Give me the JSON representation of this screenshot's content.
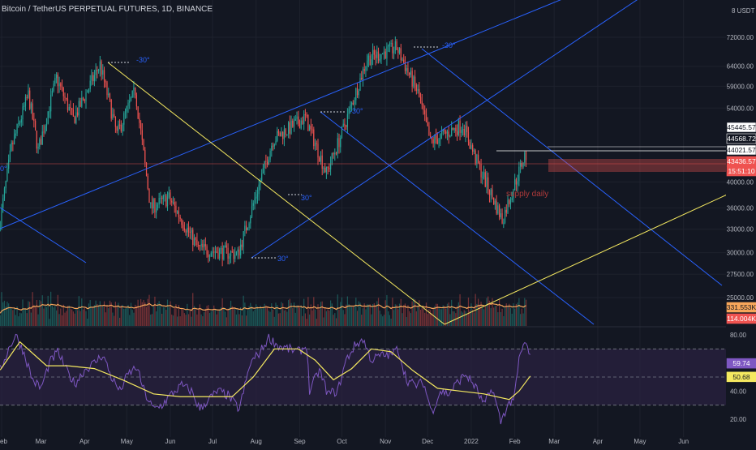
{
  "header": {
    "title": "Bitcoin / TetherUS PERPETUAL FUTURES, 1D, BINANCE"
  },
  "colors": {
    "bg": "#131722",
    "grid": "#1e222d",
    "up": "#26a69a",
    "down": "#ef5350",
    "channel": "#2962ff",
    "yellow": "#f5e960",
    "rsi": "#7e57c2",
    "rsiMa": "#f5e960",
    "rsiBand": "#2a2240",
    "vol_ma": "#f7a65a"
  },
  "chart_data": [
    {
      "type": "candlestick",
      "title": "Bitcoin / TetherUS PERPETUAL FUTURES, 1D, BINANCE",
      "yunit": "USDT",
      "ylog": true,
      "ylim": [
        23500,
        96000
      ],
      "ytick_labels": [
        "25000.00",
        "27500.00",
        "30000.00",
        "33000.00",
        "36000.00",
        "40000.00",
        "54000.00",
        "59000.00",
        "64000.00",
        "72000.00"
      ],
      "ytick_values": [
        25000,
        27500,
        30000,
        33000,
        36000,
        40000,
        54000,
        59000,
        64000,
        72000
      ],
      "xtick_labels": [
        "Feb",
        "Mar",
        "Apr",
        "May",
        "Jun",
        "Jul",
        "Aug",
        "Sep",
        "Oct",
        "Nov",
        "Dec",
        "2022",
        "Feb",
        "Mar",
        "Apr",
        "May",
        "Jun"
      ],
      "price_path": [
        [
          "2021-01-31",
          33000
        ],
        [
          "2021-02-09",
          46000
        ],
        [
          "2021-02-21",
          57000
        ],
        [
          "2021-02-28",
          45500
        ],
        [
          "2021-03-13",
          61000
        ],
        [
          "2021-03-25",
          51500
        ],
        [
          "2021-04-13",
          64500
        ],
        [
          "2021-04-25",
          48500
        ],
        [
          "2021-05-08",
          58000
        ],
        [
          "2021-05-19",
          36000
        ],
        [
          "2021-06-01",
          37500
        ],
        [
          "2021-06-22",
          30500
        ],
        [
          "2021-07-20",
          29800
        ],
        [
          "2021-08-14",
          47500
        ],
        [
          "2021-09-06",
          52000
        ],
        [
          "2021-09-21",
          41500
        ],
        [
          "2021-10-01",
          48000
        ],
        [
          "2021-10-20",
          66000
        ],
        [
          "2021-11-10",
          69000
        ],
        [
          "2021-11-25",
          57500
        ],
        [
          "2021-12-04",
          47000
        ],
        [
          "2021-12-27",
          50500
        ],
        [
          "2022-01-05",
          44000
        ],
        [
          "2022-01-24",
          34300
        ],
        [
          "2022-02-09",
          44500
        ]
      ],
      "annotations": [
        "-30°",
        "-30°",
        "-30°",
        "30°",
        "30°",
        "0°",
        "supply daily"
      ],
      "price_labels": [
        {
          "text": "45445.57",
          "value": 45445.57,
          "style": "white"
        },
        {
          "text": "44568.72",
          "value": 44568.72,
          "style": "dark"
        },
        {
          "text": "44021.57",
          "value": 44021.57,
          "style": "white"
        },
        {
          "text": "43436.57",
          "value": 43436.57,
          "style": "red"
        },
        {
          "text": "15:51:10",
          "value": 42400,
          "style": "red"
        }
      ],
      "volume_labels": [
        {
          "text": "331.553K",
          "style": "orange"
        },
        {
          "text": "114.004K",
          "style": "red"
        }
      ]
    },
    {
      "type": "line",
      "name": "RSI",
      "ylim": [
        15,
        88
      ],
      "ytick_labels": [
        "20.00",
        "40.00",
        "80.00"
      ],
      "ytick_values": [
        20,
        40,
        80
      ],
      "band": [
        30,
        70
      ],
      "mid": 50,
      "rsi_path": [
        [
          "2021-01-31",
          55
        ],
        [
          "2021-02-06",
          70
        ],
        [
          "2021-02-11",
          80
        ],
        [
          "2021-02-17",
          67
        ],
        [
          "2021-02-23",
          48
        ],
        [
          "2021-03-01",
          42
        ],
        [
          "2021-03-07",
          60
        ],
        [
          "2021-03-13",
          68
        ],
        [
          "2021-03-19",
          55
        ],
        [
          "2021-03-25",
          45
        ],
        [
          "2021-04-01",
          55
        ],
        [
          "2021-04-08",
          60
        ],
        [
          "2021-04-14",
          66
        ],
        [
          "2021-04-20",
          50
        ],
        [
          "2021-04-26",
          40
        ],
        [
          "2021-05-02",
          52
        ],
        [
          "2021-05-08",
          57
        ],
        [
          "2021-05-14",
          38
        ],
        [
          "2021-05-20",
          27
        ],
        [
          "2021-05-26",
          30
        ],
        [
          "2021-06-02",
          38
        ],
        [
          "2021-06-09",
          44
        ],
        [
          "2021-06-16",
          40
        ],
        [
          "2021-06-22",
          27
        ],
        [
          "2021-06-28",
          34
        ],
        [
          "2021-07-05",
          40
        ],
        [
          "2021-07-12",
          37
        ],
        [
          "2021-07-20",
          27
        ],
        [
          "2021-07-28",
          60
        ],
        [
          "2021-08-04",
          68
        ],
        [
          "2021-08-10",
          78
        ],
        [
          "2021-08-17",
          72
        ],
        [
          "2021-08-24",
          70
        ],
        [
          "2021-08-31",
          68
        ],
        [
          "2021-09-06",
          72
        ],
        [
          "2021-09-08",
          40
        ],
        [
          "2021-09-15",
          55
        ],
        [
          "2021-09-21",
          38
        ],
        [
          "2021-09-28",
          40
        ],
        [
          "2021-10-04",
          62
        ],
        [
          "2021-10-10",
          72
        ],
        [
          "2021-10-16",
          77
        ],
        [
          "2021-10-22",
          62
        ],
        [
          "2021-10-28",
          65
        ],
        [
          "2021-11-05",
          66
        ],
        [
          "2021-11-10",
          70
        ],
        [
          "2021-11-16",
          48
        ],
        [
          "2021-11-22",
          44
        ],
        [
          "2021-11-28",
          46
        ],
        [
          "2021-12-04",
          25
        ],
        [
          "2021-12-10",
          40
        ],
        [
          "2021-12-16",
          38
        ],
        [
          "2021-12-22",
          46
        ],
        [
          "2021-12-28",
          52
        ],
        [
          "2022-01-04",
          43
        ],
        [
          "2022-01-10",
          30
        ],
        [
          "2022-01-16",
          42
        ],
        [
          "2022-01-22",
          18
        ],
        [
          "2022-01-26",
          28
        ],
        [
          "2022-02-01",
          37
        ],
        [
          "2022-02-04",
          62
        ],
        [
          "2022-02-08",
          75
        ],
        [
          "2022-02-10",
          70
        ],
        [
          "2022-02-12",
          66
        ]
      ],
      "rsi_ma_path": [
        [
          "2021-01-31",
          55
        ],
        [
          "2021-02-14",
          75
        ],
        [
          "2021-03-05",
          58
        ],
        [
          "2021-03-20",
          58
        ],
        [
          "2021-04-08",
          56
        ],
        [
          "2021-04-28",
          48
        ],
        [
          "2021-05-20",
          38
        ],
        [
          "2021-06-08",
          36
        ],
        [
          "2021-06-28",
          36
        ],
        [
          "2021-07-15",
          36
        ],
        [
          "2021-07-30",
          50
        ],
        [
          "2021-08-14",
          70
        ],
        [
          "2021-08-31",
          70
        ],
        [
          "2021-09-12",
          62
        ],
        [
          "2021-09-25",
          48
        ],
        [
          "2021-10-08",
          56
        ],
        [
          "2021-10-22",
          70
        ],
        [
          "2021-11-05",
          68
        ],
        [
          "2021-11-20",
          55
        ],
        [
          "2021-12-08",
          42
        ],
        [
          "2021-12-24",
          40
        ],
        [
          "2022-01-10",
          38
        ],
        [
          "2022-01-28",
          34
        ],
        [
          "2022-02-04",
          40
        ],
        [
          "2022-02-12",
          50.68
        ]
      ],
      "labels": [
        {
          "text": "59.74",
          "value": 59.74,
          "style": "purple"
        },
        {
          "text": "50.68",
          "value": 50.68,
          "style": "yellow"
        }
      ]
    }
  ]
}
